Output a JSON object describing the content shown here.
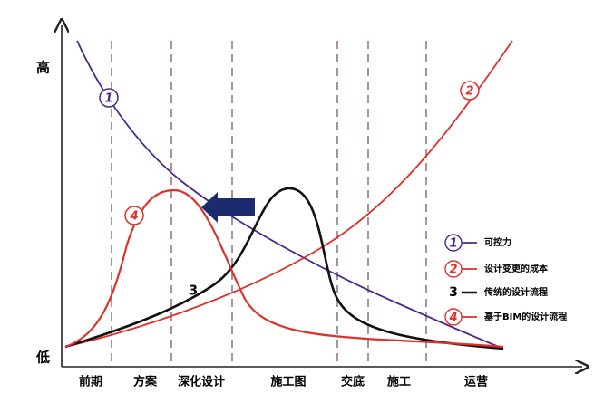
{
  "axis": {
    "high": "高",
    "low": "低"
  },
  "stages": [
    "前期",
    "方案",
    "深化设计",
    "施工图",
    "交底",
    "施工",
    "运营"
  ],
  "curve_labels": [
    "1",
    "2",
    "3",
    "4"
  ],
  "legend": [
    {
      "marker": "1",
      "label": "可控力"
    },
    {
      "marker": "2",
      "label": "设计变更的成本"
    },
    {
      "marker": "3",
      "label": "传统的设计流程"
    },
    {
      "marker": "4",
      "label": "基于BIM的设计流程"
    }
  ]
}
